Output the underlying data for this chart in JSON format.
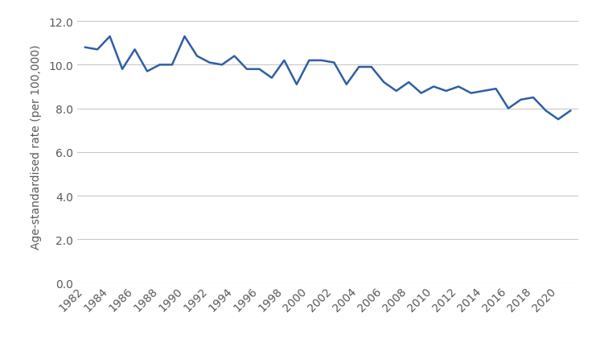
{
  "years": [
    1982,
    1983,
    1984,
    1985,
    1986,
    1987,
    1988,
    1989,
    1990,
    1991,
    1992,
    1993,
    1994,
    1995,
    1996,
    1997,
    1998,
    1999,
    2000,
    2001,
    2002,
    2003,
    2004,
    2005,
    2006,
    2007,
    2008,
    2009,
    2010,
    2011,
    2012,
    2013,
    2014,
    2015,
    2016,
    2017,
    2018,
    2019,
    2020,
    2021
  ],
  "values": [
    10.8,
    10.7,
    11.3,
    9.8,
    10.7,
    9.7,
    10.0,
    10.0,
    11.3,
    10.4,
    10.1,
    10.0,
    10.4,
    9.8,
    9.8,
    9.4,
    10.2,
    9.1,
    10.2,
    10.2,
    10.1,
    9.1,
    9.9,
    9.9,
    9.2,
    8.8,
    9.2,
    8.7,
    9.0,
    8.8,
    9.0,
    8.7,
    8.8,
    8.9,
    8.0,
    8.4,
    8.5,
    7.9,
    7.5,
    7.9
  ],
  "line_color": "#2e5fa3",
  "line_width": 1.8,
  "ylabel": "Age-standardised rate (per 100,000)",
  "ylim": [
    0.0,
    12.5
  ],
  "yticks": [
    0.0,
    2.0,
    4.0,
    6.0,
    8.0,
    10.0,
    12.0
  ],
  "xtick_years": [
    1982,
    1984,
    1986,
    1988,
    1990,
    1992,
    1994,
    1996,
    1998,
    2000,
    2002,
    2004,
    2006,
    2008,
    2010,
    2012,
    2014,
    2016,
    2018,
    2020
  ],
  "background_color": "#ffffff",
  "grid_color": "#c8c8c8",
  "tick_label_color": "#595959",
  "ylabel_color": "#595959",
  "ylabel_fontsize": 10,
  "tick_fontsize": 10,
  "xlim_left": 1981.4,
  "xlim_right": 2021.6
}
